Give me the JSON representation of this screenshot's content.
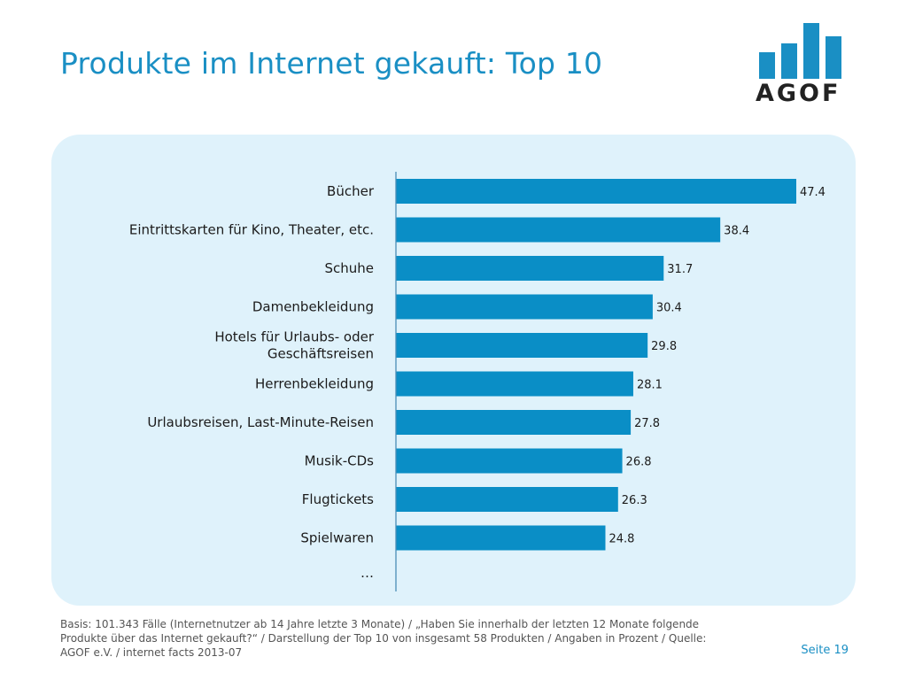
{
  "slide": {
    "title": "Produkte im Internet gekauft: Top 10",
    "logo_text": "AGOF",
    "footnote": "Basis: 101.343 Fälle (Internetnutzer ab 14 Jahre letzte 3 Monate) / „Haben Sie innerhalb der letzten 12 Monate folgende Produkte über das Internet gekauft?“ / Darstellung der Top 10 von insgesamt 58 Produkten / Angaben in Prozent / Quelle: AGOF e.V. / internet facts 2013-07",
    "page_label": "Seite 19",
    "colors": {
      "accent": "#1a8fc4",
      "bar": "#0a8ec6",
      "panel": "#dff2fb"
    }
  },
  "chart_data": {
    "type": "bar",
    "orientation": "horizontal",
    "categories": [
      [
        "Bücher"
      ],
      [
        "Eintrittskarten für Kino, Theater, etc."
      ],
      [
        "Schuhe"
      ],
      [
        "Damenbekleidung"
      ],
      [
        "Hotels für Urlaubs- oder",
        "Geschäftsreisen"
      ],
      [
        "Herrenbekleidung"
      ],
      [
        "Urlaubsreisen, Last-Minute-Reisen"
      ],
      [
        "Musik-CDs"
      ],
      [
        "Flugtickets"
      ],
      [
        "Spielwaren"
      ]
    ],
    "values": [
      47.4,
      38.4,
      31.7,
      30.4,
      29.8,
      28.1,
      27.8,
      26.8,
      26.3,
      24.8
    ],
    "value_labels": [
      "47.4",
      "38.4",
      "31.7",
      "30.4",
      "29.8",
      "28.1",
      "27.8",
      "26.8",
      "26.3",
      "24.8"
    ],
    "trailing_label": "…",
    "xlim": [
      0,
      50
    ],
    "grid": false
  }
}
